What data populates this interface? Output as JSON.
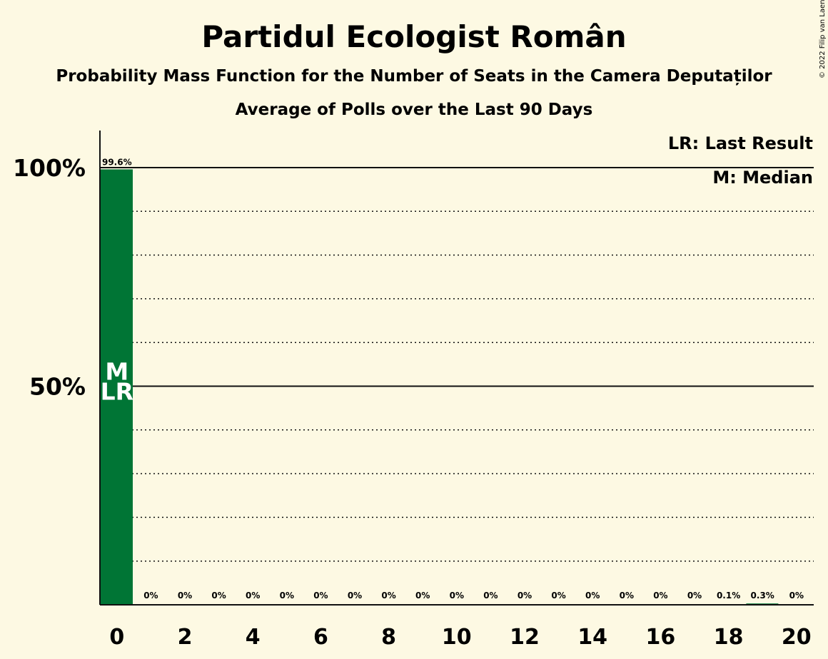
{
  "chart_data": {
    "type": "bar",
    "title": "Partidul Ecologist Român",
    "subtitle": "Probability Mass Function for the Number of Seats in the Camera Deputaților",
    "subtitle2": "Average of Polls over the Last 90 Days",
    "copyright": "© 2022 Filip van Laenen",
    "x": [
      0,
      1,
      2,
      3,
      4,
      5,
      6,
      7,
      8,
      9,
      10,
      11,
      12,
      13,
      14,
      15,
      16,
      17,
      18,
      19,
      20
    ],
    "values": [
      99.6,
      0,
      0,
      0,
      0,
      0,
      0,
      0,
      0,
      0,
      0,
      0,
      0,
      0,
      0,
      0,
      0,
      0,
      0.1,
      0.3,
      0
    ],
    "value_labels": [
      "99.6%",
      "0%",
      "0%",
      "0%",
      "0%",
      "0%",
      "0%",
      "0%",
      "0%",
      "0%",
      "0%",
      "0%",
      "0%",
      "0%",
      "0%",
      "0%",
      "0%",
      "0%",
      "0.1%",
      "0.3%",
      "0%"
    ],
    "x_tick_labels": [
      "0",
      "2",
      "4",
      "6",
      "8",
      "10",
      "12",
      "14",
      "16",
      "18",
      "20"
    ],
    "x_tick_values": [
      0,
      2,
      4,
      6,
      8,
      10,
      12,
      14,
      16,
      18,
      20
    ],
    "y_tick_labels": [
      "50%",
      "100%"
    ],
    "y_tick_values": [
      50,
      100
    ],
    "ylim": [
      0,
      109
    ],
    "bar_color": "#007535",
    "median_seat": 0,
    "last_result_seat": 0,
    "bar_markers": [
      "M",
      "LR"
    ],
    "legend": [
      "LR: Last Result",
      "M: Median"
    ],
    "legend_position": "top-right",
    "grid": true
  }
}
